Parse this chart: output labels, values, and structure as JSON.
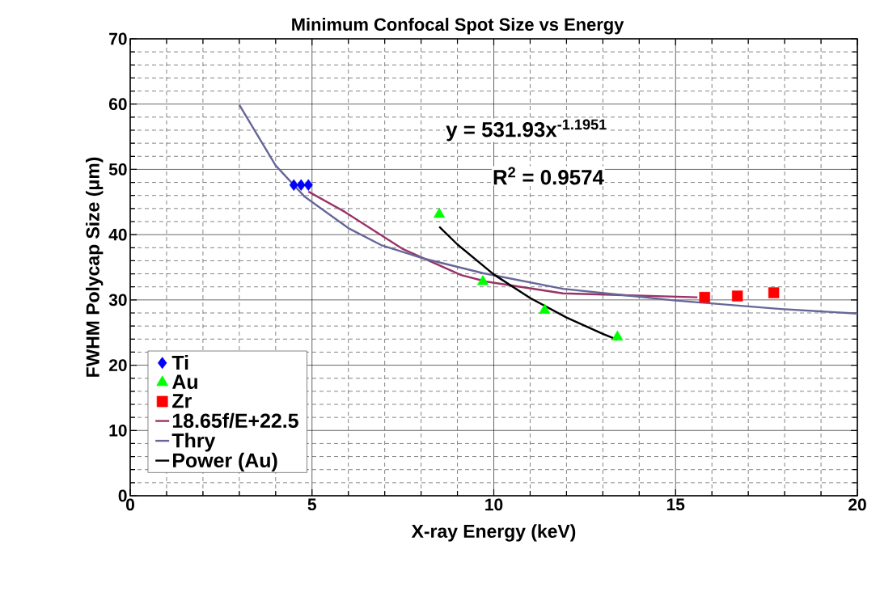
{
  "chart_data": {
    "type": "scatter",
    "title": "Minimum Confocal Spot Size vs Energy",
    "xlabel": "X-ray Energy (keV)",
    "ylabel": "FWHM Polycap Size (μm)",
    "xlim": [
      0,
      20
    ],
    "ylim": [
      0,
      70
    ],
    "xticks": [
      0,
      5,
      10,
      15,
      20
    ],
    "yticks": [
      0,
      10,
      20,
      30,
      40,
      50,
      60,
      70
    ],
    "grid": true,
    "legend": "bottom left",
    "annotations": [
      "y = 531.93x$^{-1.1951}$",
      "R$^{2}$ = 0.9574"
    ],
    "series": [
      {
        "name": "Ti",
        "marker": "diamond",
        "color": "#0000ff",
        "x": [
          4.5,
          4.7,
          4.9
        ],
        "values": [
          47.6,
          47.6,
          47.6
        ]
      },
      {
        "name": "Au",
        "marker": "triangle",
        "color": "#00ff00",
        "x": [
          8.5,
          9.7,
          11.4,
          13.4
        ],
        "values": [
          43.1,
          32.8,
          28.4,
          24.3
        ]
      },
      {
        "name": "Zr",
        "marker": "square",
        "color": "#ff0000",
        "x": [
          15.8,
          16.7,
          17.7
        ],
        "values": [
          30.4,
          30.6,
          31.1
        ]
      },
      {
        "name": "18.65f/E+22.5",
        "type": "line",
        "color": "#993366",
        "x": [
          4.9,
          5.9,
          7.5,
          9.1,
          9.8,
          11.9,
          15.6
        ],
        "values": [
          46.6,
          43.5,
          37.8,
          33.8,
          32.8,
          31.0,
          30.4
        ]
      },
      {
        "name": "Thry",
        "type": "line",
        "color": "#666699",
        "x": [
          3.0,
          4.0,
          4.8,
          6.0,
          6.9,
          8.1,
          9.7,
          11.9,
          15.0,
          17.9,
          20.0
        ],
        "values": [
          59.9,
          50.6,
          45.8,
          41.0,
          38.4,
          36.3,
          34.1,
          31.7,
          29.9,
          28.6,
          27.9
        ]
      },
      {
        "name": "Power (Au)",
        "type": "line",
        "color": "#000000",
        "x": [
          8.5,
          9,
          10,
          11,
          12,
          13,
          13.4
        ],
        "values": [
          41.2,
          38.5,
          33.9,
          30.3,
          27.3,
          24.8,
          23.9
        ]
      }
    ]
  }
}
